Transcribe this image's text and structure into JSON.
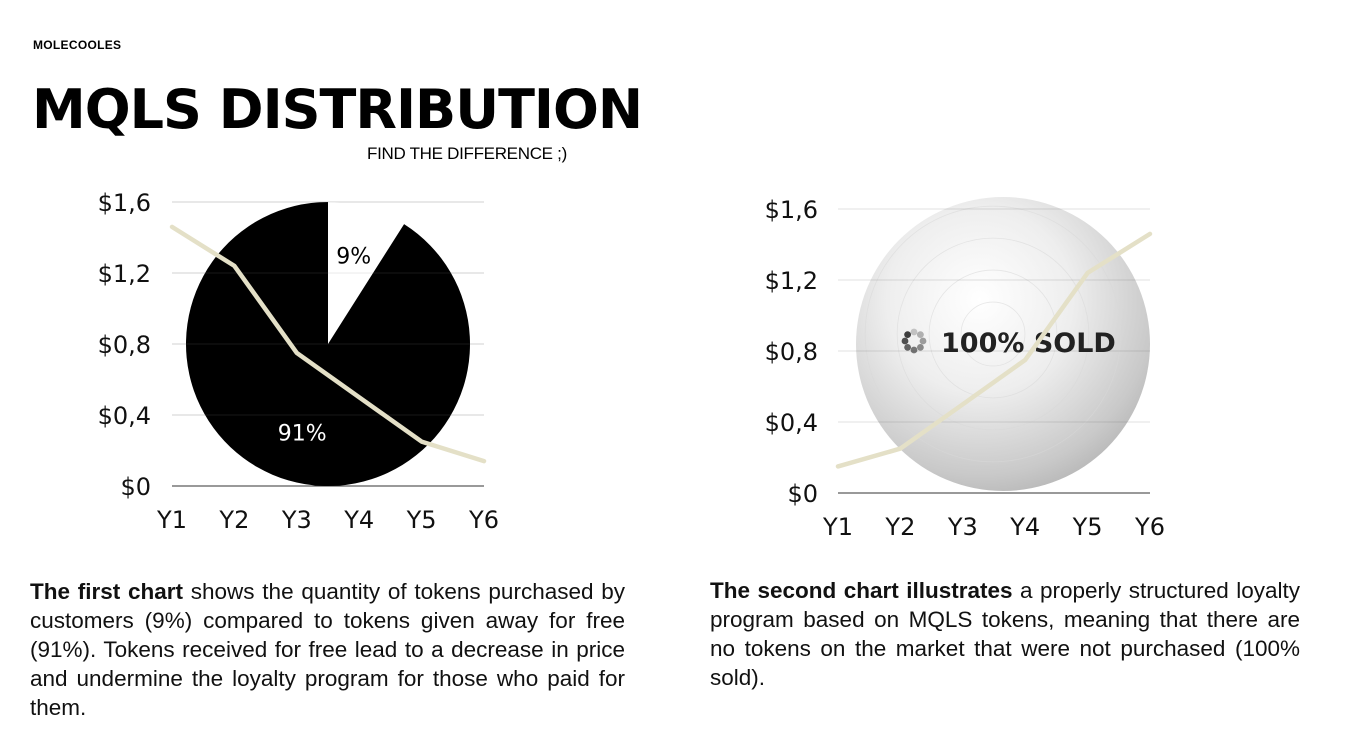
{
  "brand": "MOLECOOLES",
  "title": "MQLS DISTRIBUTION",
  "subtitle": "FIND THE DIFFERENCE ;)",
  "colors": {
    "line": "#e4e0c7",
    "pie_dark": "#000000",
    "pie_light": "#ffffff",
    "axis": "#333333"
  },
  "chart_data": [
    {
      "type": "pie",
      "slices": [
        {
          "label": "9%",
          "value": 9
        },
        {
          "label": "91%",
          "value": 91
        }
      ],
      "overlay_line": {
        "type": "line",
        "categories": [
          "Y1",
          "Y2",
          "Y3",
          "Y4",
          "Y5",
          "Y6"
        ],
        "values": [
          1.46,
          1.24,
          0.75,
          0.5,
          0.25,
          0.14
        ]
      },
      "yticks": [
        "$0",
        "$0,4",
        "$0,8",
        "$1,2",
        "$1,6"
      ],
      "ylim": [
        0,
        1.6
      ],
      "grid": true
    },
    {
      "type": "line",
      "categories": [
        "Y1",
        "Y2",
        "Y3",
        "Y4",
        "Y5",
        "Y6"
      ],
      "values": [
        0.15,
        0.25,
        0.5,
        0.75,
        1.24,
        1.46
      ],
      "yticks": [
        "$0",
        "$0,4",
        "$0,8",
        "$1,2",
        "$1,6"
      ],
      "ylim": [
        0,
        1.6
      ],
      "grid": true,
      "badge": "100% SOLD"
    }
  ],
  "descriptions": {
    "first_bold": "The first chart",
    "first_rest": " shows the quantity of tokens purchased by customers (9%) compared to tokens given away for free (91%). Tokens received for free lead to a decrease in price and undermine the loyalty program for those who paid for them.",
    "second_bold": "The second chart illustrates",
    "second_rest": " a properly structured loyalty program based on MQLS tokens, meaning that there are no tokens on the market that were not purchased (100% sold)."
  }
}
